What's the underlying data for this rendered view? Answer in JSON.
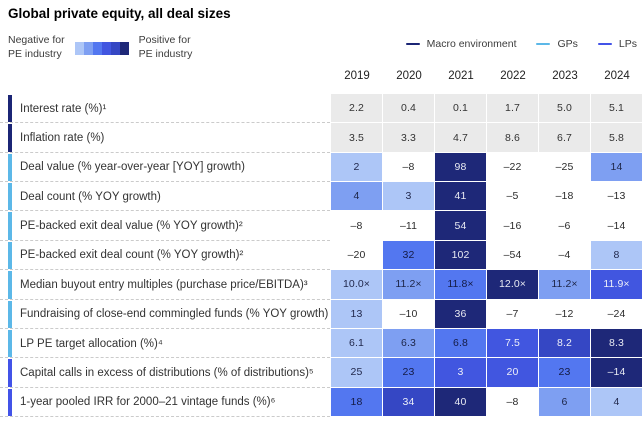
{
  "chart_data": {
    "type": "heatmap",
    "title": "Global private equity, all deal sizes",
    "legend": {
      "negative_line1": "Negative for",
      "negative_line2": "PE industry",
      "positive_line1": "Positive for",
      "positive_line2": "PE industry",
      "swatches": [
        "#adc6f7",
        "#7e9ff2",
        "#5377f0",
        "#4156e0",
        "#3547c4",
        "#1e2878"
      ],
      "categories": [
        {
          "key": "macro",
          "label": "Macro environment",
          "color": "#1b2575"
        },
        {
          "key": "gps",
          "label": "GPs",
          "color": "#5cb8e8"
        },
        {
          "key": "lps",
          "label": "LPs",
          "color": "#4353e8"
        }
      ]
    },
    "palette": {
      "gray": {
        "bg": "#eaeaea",
        "fg": "#333333"
      },
      "w": {
        "bg": "#ffffff",
        "fg": "#2b2b2b"
      },
      "b1": {
        "bg": "#adc6f7",
        "fg": "#22294d"
      },
      "b2": {
        "bg": "#7e9ff2",
        "fg": "#1d2547"
      },
      "b3": {
        "bg": "#5377f0",
        "fg": "#141b45"
      },
      "b4": {
        "bg": "#4156e0",
        "fg": "#edeff8"
      },
      "b5": {
        "bg": "#3547c4",
        "fg": "#edeff8"
      },
      "b6": {
        "bg": "#1e2878",
        "fg": "#e8eaf2"
      }
    },
    "columns": [
      "2019",
      "2020",
      "2021",
      "2022",
      "2023",
      "2024"
    ],
    "rows": [
      {
        "label": "Interest rate (%)¹",
        "category": "macro",
        "numeric": [
          2.2,
          0.4,
          0.1,
          1.7,
          5.0,
          5.1
        ],
        "cells": [
          {
            "v": "2.2",
            "c": "gray"
          },
          {
            "v": "0.4",
            "c": "gray"
          },
          {
            "v": "0.1",
            "c": "gray"
          },
          {
            "v": "1.7",
            "c": "gray"
          },
          {
            "v": "5.0",
            "c": "gray"
          },
          {
            "v": "5.1",
            "c": "gray"
          }
        ]
      },
      {
        "label": "Inflation rate (%)",
        "category": "macro",
        "numeric": [
          3.5,
          3.3,
          4.7,
          8.6,
          6.7,
          5.8
        ],
        "cells": [
          {
            "v": "3.5",
            "c": "gray"
          },
          {
            "v": "3.3",
            "c": "gray"
          },
          {
            "v": "4.7",
            "c": "gray"
          },
          {
            "v": "8.6",
            "c": "gray"
          },
          {
            "v": "6.7",
            "c": "gray"
          },
          {
            "v": "5.8",
            "c": "gray"
          }
        ]
      },
      {
        "label": "Deal value (% year-over-year [YOY] growth)",
        "category": "gps",
        "numeric": [
          2,
          -8,
          98,
          -22,
          -25,
          14
        ],
        "cells": [
          {
            "v": "2",
            "c": "b1"
          },
          {
            "v": "–8",
            "c": "w"
          },
          {
            "v": "98",
            "c": "b6"
          },
          {
            "v": "–22",
            "c": "w"
          },
          {
            "v": "–25",
            "c": "w"
          },
          {
            "v": "14",
            "c": "b2"
          }
        ]
      },
      {
        "label": "Deal count (% YOY growth)",
        "category": "gps",
        "numeric": [
          4,
          3,
          41,
          -5,
          -18,
          -13
        ],
        "cells": [
          {
            "v": "4",
            "c": "b2"
          },
          {
            "v": "3",
            "c": "b1"
          },
          {
            "v": "41",
            "c": "b6"
          },
          {
            "v": "–5",
            "c": "w"
          },
          {
            "v": "–18",
            "c": "w"
          },
          {
            "v": "–13",
            "c": "w"
          }
        ]
      },
      {
        "label": "PE-backed exit deal value (% YOY growth)²",
        "category": "gps",
        "numeric": [
          -8,
          -11,
          54,
          -16,
          -6,
          -14
        ],
        "cells": [
          {
            "v": "–8",
            "c": "w"
          },
          {
            "v": "–11",
            "c": "w"
          },
          {
            "v": "54",
            "c": "b6"
          },
          {
            "v": "–16",
            "c": "w"
          },
          {
            "v": "–6",
            "c": "w"
          },
          {
            "v": "–14",
            "c": "w"
          }
        ]
      },
      {
        "label": "PE-backed exit deal count (% YOY growth)²",
        "category": "gps",
        "numeric": [
          -20,
          32,
          102,
          -54,
          -4,
          8
        ],
        "cells": [
          {
            "v": "–20",
            "c": "w"
          },
          {
            "v": "32",
            "c": "b3"
          },
          {
            "v": "102",
            "c": "b6"
          },
          {
            "v": "–54",
            "c": "w"
          },
          {
            "v": "–4",
            "c": "w"
          },
          {
            "v": "8",
            "c": "b1"
          }
        ]
      },
      {
        "label": "Median buyout entry multiples (purchase price/EBITDA)³",
        "category": "gps",
        "numeric": [
          10.0,
          11.2,
          11.8,
          12.0,
          11.2,
          11.9
        ],
        "cells": [
          {
            "v": "10.0×",
            "c": "b1"
          },
          {
            "v": "11.2×",
            "c": "b2"
          },
          {
            "v": "11.8×",
            "c": "b3"
          },
          {
            "v": "12.0×",
            "c": "b6"
          },
          {
            "v": "11.2×",
            "c": "b2"
          },
          {
            "v": "11.9×",
            "c": "b4"
          }
        ]
      },
      {
        "label": "Fundraising of close-end commingled funds (% YOY growth)",
        "category": "gps",
        "numeric": [
          13,
          -10,
          36,
          -7,
          -12,
          -24
        ],
        "cells": [
          {
            "v": "13",
            "c": "b1"
          },
          {
            "v": "–10",
            "c": "w"
          },
          {
            "v": "36",
            "c": "b6"
          },
          {
            "v": "–7",
            "c": "w"
          },
          {
            "v": "–12",
            "c": "w"
          },
          {
            "v": "–24",
            "c": "w"
          }
        ]
      },
      {
        "label": "LP PE target allocation (%)⁴",
        "category": "gps",
        "numeric": [
          6.1,
          6.3,
          6.8,
          7.5,
          8.2,
          8.3
        ],
        "cells": [
          {
            "v": "6.1",
            "c": "b1"
          },
          {
            "v": "6.3",
            "c": "b2"
          },
          {
            "v": "6.8",
            "c": "b3"
          },
          {
            "v": "7.5",
            "c": "b4"
          },
          {
            "v": "8.2",
            "c": "b5"
          },
          {
            "v": "8.3",
            "c": "b6"
          }
        ]
      },
      {
        "label": "Capital calls in excess of distributions (% of distributions)⁵",
        "category": "lps",
        "numeric": [
          25,
          23,
          3,
          20,
          23,
          -14
        ],
        "cells": [
          {
            "v": "25",
            "c": "b1"
          },
          {
            "v": "23",
            "c": "b3"
          },
          {
            "v": "3",
            "c": "b4"
          },
          {
            "v": "20",
            "c": "b4"
          },
          {
            "v": "23",
            "c": "b3"
          },
          {
            "v": "–14",
            "c": "b6"
          }
        ]
      },
      {
        "label": "1-year pooled IRR for 2000–21 vintage funds (%)⁶",
        "category": "lps",
        "numeric": [
          18,
          34,
          40,
          -8,
          6,
          4
        ],
        "cells": [
          {
            "v": "18",
            "c": "b3"
          },
          {
            "v": "34",
            "c": "b5"
          },
          {
            "v": "40",
            "c": "b6"
          },
          {
            "v": "–8",
            "c": "w"
          },
          {
            "v": "6",
            "c": "b2"
          },
          {
            "v": "4",
            "c": "b1"
          }
        ]
      }
    ]
  }
}
